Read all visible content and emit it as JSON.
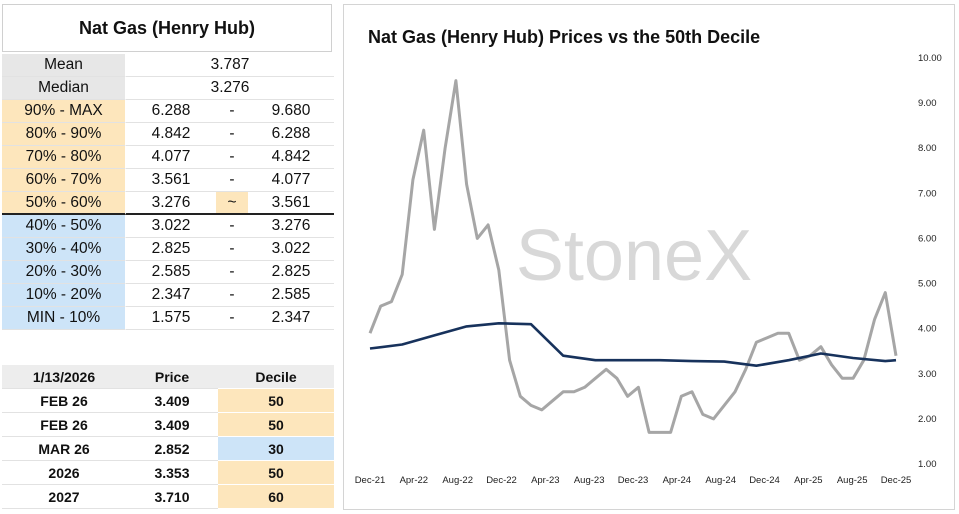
{
  "colors": {
    "upper_decile_bg": "#fde6bc",
    "lower_decile_bg": "#cde4f8",
    "label_bg": "#e7e7e7",
    "price_line": "#a6a6a6",
    "median_line": "#17325c",
    "watermark": "#d8d8d8"
  },
  "stats": {
    "title": "Nat Gas (Henry Hub)",
    "mean_label": "Mean",
    "mean_value": "3.787",
    "median_label": "Median",
    "median_value": "3.276"
  },
  "deciles": [
    {
      "label": "90% - MAX",
      "low": "6.288",
      "sep": "-",
      "high": "9.680",
      "zone": "upper"
    },
    {
      "label": "80% - 90%",
      "low": "4.842",
      "sep": "-",
      "high": "6.288",
      "zone": "upper"
    },
    {
      "label": "70% - 80%",
      "low": "4.077",
      "sep": "-",
      "high": "4.842",
      "zone": "upper"
    },
    {
      "label": "60% - 70%",
      "low": "3.561",
      "sep": "-",
      "high": "4.077",
      "zone": "upper"
    },
    {
      "label": "50% - 60%",
      "low": "3.276",
      "sep": "~",
      "high": "3.561",
      "zone": "upper"
    },
    {
      "label": "40% - 50%",
      "low": "3.022",
      "sep": "-",
      "high": "3.276",
      "zone": "lower"
    },
    {
      "label": "30% - 40%",
      "low": "2.825",
      "sep": "-",
      "high": "3.022",
      "zone": "lower"
    },
    {
      "label": "20% - 30%",
      "low": "2.585",
      "sep": "-",
      "high": "2.825",
      "zone": "lower"
    },
    {
      "label": "10% - 20%",
      "low": "2.347",
      "sep": "-",
      "high": "2.585",
      "zone": "lower"
    },
    {
      "label": "MIN - 10%",
      "low": "1.575",
      "sep": "-",
      "high": "2.347",
      "zone": "lower"
    }
  ],
  "price_table": {
    "headers": [
      "1/13/2026",
      "Price",
      "Decile"
    ],
    "rows": [
      {
        "contract": "FEB 26",
        "price": "3.409",
        "decile": "50",
        "zone": "upper"
      },
      {
        "contract": "FEB 26",
        "price": "3.409",
        "decile": "50",
        "zone": "upper"
      },
      {
        "contract": "MAR 26",
        "price": "2.852",
        "decile": "30",
        "zone": "lower"
      },
      {
        "contract": "2026",
        "price": "3.353",
        "decile": "50",
        "zone": "upper"
      },
      {
        "contract": "2027",
        "price": "3.710",
        "decile": "60",
        "zone": "upper"
      }
    ]
  },
  "chart_data": {
    "type": "line",
    "title": "Nat Gas (Henry Hub) Prices vs the 50th Decile",
    "watermark": "StoneX",
    "xlabel": "",
    "ylabel": "",
    "ylim": [
      1.0,
      10.0
    ],
    "y_ticks": [
      "1.00",
      "2.00",
      "3.00",
      "4.00",
      "5.00",
      "6.00",
      "7.00",
      "8.00",
      "9.00",
      "10.00"
    ],
    "x_tick_labels": [
      "Dec-21",
      "Apr-22",
      "Aug-22",
      "Dec-22",
      "Apr-23",
      "Aug-23",
      "Dec-23",
      "Apr-24",
      "Aug-24",
      "Dec-24",
      "Apr-25",
      "Aug-25",
      "Dec-25"
    ],
    "x_range": [
      "2021-12",
      "2026-01"
    ],
    "grid": false,
    "series": [
      {
        "color": "#a6a6a6",
        "x": [
          "2021-12",
          "2022-01",
          "2022-02",
          "2022-03",
          "2022-04",
          "2022-05",
          "2022-06",
          "2022-07",
          "2022-08",
          "2022-09",
          "2022-10",
          "2022-11",
          "2022-12",
          "2023-01",
          "2023-02",
          "2023-03",
          "2023-04",
          "2023-05",
          "2023-06",
          "2023-07",
          "2023-08",
          "2023-09",
          "2023-10",
          "2023-11",
          "2023-12",
          "2024-01",
          "2024-02",
          "2024-03",
          "2024-04",
          "2024-05",
          "2024-06",
          "2024-07",
          "2024-08",
          "2024-09",
          "2024-10",
          "2024-11",
          "2024-12",
          "2025-01",
          "2025-02",
          "2025-03",
          "2025-04",
          "2025-05",
          "2025-06",
          "2025-07",
          "2025-08",
          "2025-09",
          "2025-10",
          "2025-11",
          "2025-12",
          "2026-01"
        ],
        "values": [
          3.9,
          4.5,
          4.6,
          5.2,
          7.3,
          8.4,
          6.2,
          8.0,
          9.5,
          7.2,
          6.0,
          6.3,
          5.3,
          3.3,
          2.5,
          2.3,
          2.2,
          2.4,
          2.6,
          2.6,
          2.7,
          2.9,
          3.1,
          2.9,
          2.5,
          2.7,
          1.7,
          1.7,
          1.7,
          2.5,
          2.6,
          2.1,
          2.0,
          2.3,
          2.6,
          3.1,
          3.7,
          3.8,
          3.9,
          3.9,
          3.3,
          3.4,
          3.6,
          3.2,
          2.9,
          2.9,
          3.3,
          4.2,
          4.8,
          3.4
        ]
      },
      {
        "color": "#17325c",
        "x": [
          "2021-12",
          "2022-03",
          "2022-06",
          "2022-09",
          "2022-12",
          "2023-03",
          "2023-06",
          "2023-09",
          "2023-12",
          "2024-03",
          "2024-06",
          "2024-09",
          "2024-12",
          "2025-03",
          "2025-06",
          "2025-09",
          "2025-12",
          "2026-01"
        ],
        "values": [
          3.56,
          3.65,
          3.85,
          4.05,
          4.12,
          4.1,
          3.4,
          3.3,
          3.3,
          3.3,
          3.28,
          3.27,
          3.18,
          3.3,
          3.45,
          3.35,
          3.28,
          3.3
        ]
      }
    ]
  }
}
